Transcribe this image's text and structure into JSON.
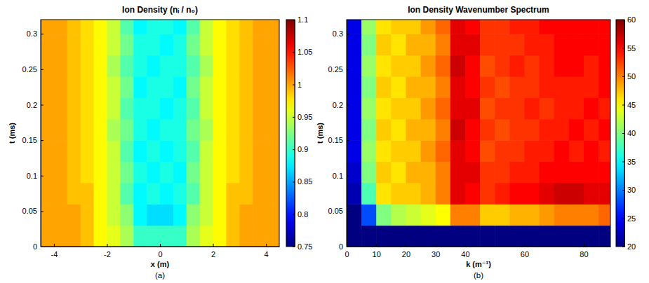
{
  "chart_data": [
    {
      "type": "heatmap",
      "title": "Ion Density (nᵢ / n₀)",
      "x_label": "x (m)",
      "y_label": "t (ms)",
      "caption": "(a)",
      "xlim": [
        -4.5,
        4.5
      ],
      "ylim": [
        0,
        0.32
      ],
      "xticks": [
        -4,
        -2,
        0,
        2,
        4
      ],
      "yticks": [
        0,
        0.05,
        0.1,
        0.15,
        0.2,
        0.25,
        0.3
      ],
      "xbins": [
        -4.5,
        -4,
        -3.5,
        -3,
        -2.5,
        -2,
        -1.5,
        -1,
        -0.5,
        0,
        0.5,
        1,
        1.5,
        2,
        2.5,
        3,
        3.5,
        4,
        4.5
      ],
      "ybins": [
        0,
        0.03,
        0.06,
        0.09,
        0.12,
        0.15,
        0.18,
        0.21,
        0.24,
        0.27,
        0.3,
        0.32
      ],
      "colorbar": {
        "range": [
          0.75,
          1.1
        ],
        "ticks": [
          0.75,
          0.8,
          0.85,
          0.9,
          0.95,
          1,
          1.05,
          1.1
        ]
      },
      "values": [
        [
          1,
          1,
          1,
          0.99,
          0.97,
          0.96,
          0.94,
          0.9,
          0.9,
          0.9,
          0.9,
          0.94,
          0.96,
          0.97,
          0.99,
          1,
          1,
          1
        ],
        [
          1,
          1,
          1,
          0.99,
          0.97,
          0.95,
          0.93,
          0.88,
          0.87,
          0.87,
          0.88,
          0.93,
          0.95,
          0.97,
          0.99,
          1,
          1,
          1
        ],
        [
          1,
          1,
          0.99,
          0.99,
          0.97,
          0.95,
          0.91,
          0.88,
          0.89,
          0.88,
          0.89,
          0.91,
          0.95,
          0.97,
          0.99,
          0.99,
          1,
          1
        ],
        [
          1,
          1,
          0.99,
          0.98,
          0.97,
          0.95,
          0.92,
          0.89,
          0.88,
          0.89,
          0.88,
          0.92,
          0.95,
          0.97,
          0.98,
          0.99,
          1,
          1
        ],
        [
          1,
          1,
          0.99,
          0.98,
          0.97,
          0.95,
          0.91,
          0.88,
          0.89,
          0.88,
          0.89,
          0.91,
          0.95,
          0.97,
          0.98,
          0.99,
          1,
          1
        ],
        [
          1,
          1,
          0.99,
          0.98,
          0.97,
          0.94,
          0.92,
          0.89,
          0.88,
          0.89,
          0.89,
          0.92,
          0.94,
          0.97,
          0.98,
          0.99,
          1,
          1
        ],
        [
          1,
          1,
          0.99,
          0.98,
          0.97,
          0.95,
          0.91,
          0.89,
          0.89,
          0.88,
          0.89,
          0.91,
          0.95,
          0.97,
          0.98,
          0.99,
          1,
          1
        ],
        [
          1,
          1,
          0.99,
          0.98,
          0.97,
          0.95,
          0.92,
          0.88,
          0.89,
          0.89,
          0.88,
          0.92,
          0.95,
          0.97,
          0.98,
          0.99,
          1,
          1
        ],
        [
          1,
          1,
          0.99,
          0.98,
          0.97,
          0.94,
          0.91,
          0.89,
          0.88,
          0.89,
          0.89,
          0.91,
          0.94,
          0.97,
          0.98,
          0.99,
          1,
          1
        ],
        [
          1,
          1,
          0.99,
          0.98,
          0.97,
          0.95,
          0.92,
          0.89,
          0.89,
          0.88,
          0.89,
          0.92,
          0.95,
          0.97,
          0.98,
          0.99,
          1,
          1
        ],
        [
          1,
          1,
          0.99,
          0.98,
          0.97,
          0.95,
          0.91,
          0.88,
          0.89,
          0.89,
          0.88,
          0.91,
          0.95,
          0.97,
          0.98,
          0.99,
          1,
          1
        ]
      ]
    },
    {
      "type": "heatmap",
      "title": "Ion Density Wavenumber Spectrum",
      "x_label": "k (m⁻¹)",
      "y_label": "t (ms)",
      "caption": "(b)",
      "xlim": [
        0,
        89
      ],
      "ylim": [
        0,
        0.32
      ],
      "xticks": [
        0,
        10,
        20,
        30,
        40,
        60,
        80
      ],
      "yticks": [
        0,
        0.05,
        0.1,
        0.15,
        0.2,
        0.25,
        0.3
      ],
      "xbins": [
        0,
        5,
        10,
        15,
        20,
        25,
        30,
        35,
        40,
        45,
        50,
        55,
        60,
        65,
        70,
        75,
        80,
        85,
        89
      ],
      "ybins": [
        0,
        0.03,
        0.06,
        0.09,
        0.12,
        0.15,
        0.18,
        0.21,
        0.24,
        0.27,
        0.3,
        0.32
      ],
      "colorbar": {
        "range": [
          20,
          60
        ],
        "ticks": [
          20,
          25,
          30,
          35,
          40,
          45,
          50,
          55,
          60
        ]
      },
      "values": [
        [
          20,
          20,
          20,
          20,
          20,
          20,
          20,
          20,
          20,
          20,
          20,
          20,
          20,
          20,
          20,
          20,
          20,
          20
        ],
        [
          20,
          28,
          40,
          42,
          43,
          44,
          45,
          50,
          50,
          47,
          47,
          48,
          48,
          49,
          50,
          50,
          50,
          51
        ],
        [
          22,
          38,
          46,
          47,
          47,
          48,
          50,
          56,
          55,
          53,
          54,
          55,
          55,
          56,
          57,
          57,
          56,
          56
        ],
        [
          23,
          40,
          47,
          46,
          48,
          48,
          50,
          56,
          56,
          53,
          53,
          54,
          54,
          55,
          55,
          55,
          55,
          55
        ],
        [
          24,
          41,
          46,
          47,
          47,
          49,
          51,
          56,
          55,
          52,
          53,
          53,
          54,
          54,
          55,
          54,
          55,
          54
        ],
        [
          24,
          40,
          47,
          46,
          48,
          48,
          50,
          57,
          55,
          53,
          52,
          53,
          53,
          54,
          54,
          55,
          54,
          55
        ],
        [
          24,
          41,
          46,
          47,
          47,
          49,
          51,
          56,
          56,
          52,
          53,
          53,
          54,
          53,
          54,
          54,
          55,
          54
        ],
        [
          24,
          40,
          47,
          46,
          48,
          48,
          50,
          56,
          55,
          53,
          52,
          53,
          53,
          54,
          54,
          54,
          54,
          55
        ],
        [
          24,
          41,
          46,
          47,
          47,
          49,
          51,
          57,
          55,
          52,
          53,
          54,
          53,
          54,
          55,
          55,
          54,
          55
        ],
        [
          24,
          40,
          47,
          46,
          48,
          48,
          50,
          56,
          56,
          53,
          53,
          53,
          54,
          54,
          55,
          55,
          55,
          55
        ],
        [
          24,
          41,
          46,
          47,
          47,
          49,
          51,
          56,
          55,
          53,
          53,
          54,
          54,
          55,
          55,
          55,
          55,
          55
        ]
      ]
    }
  ]
}
